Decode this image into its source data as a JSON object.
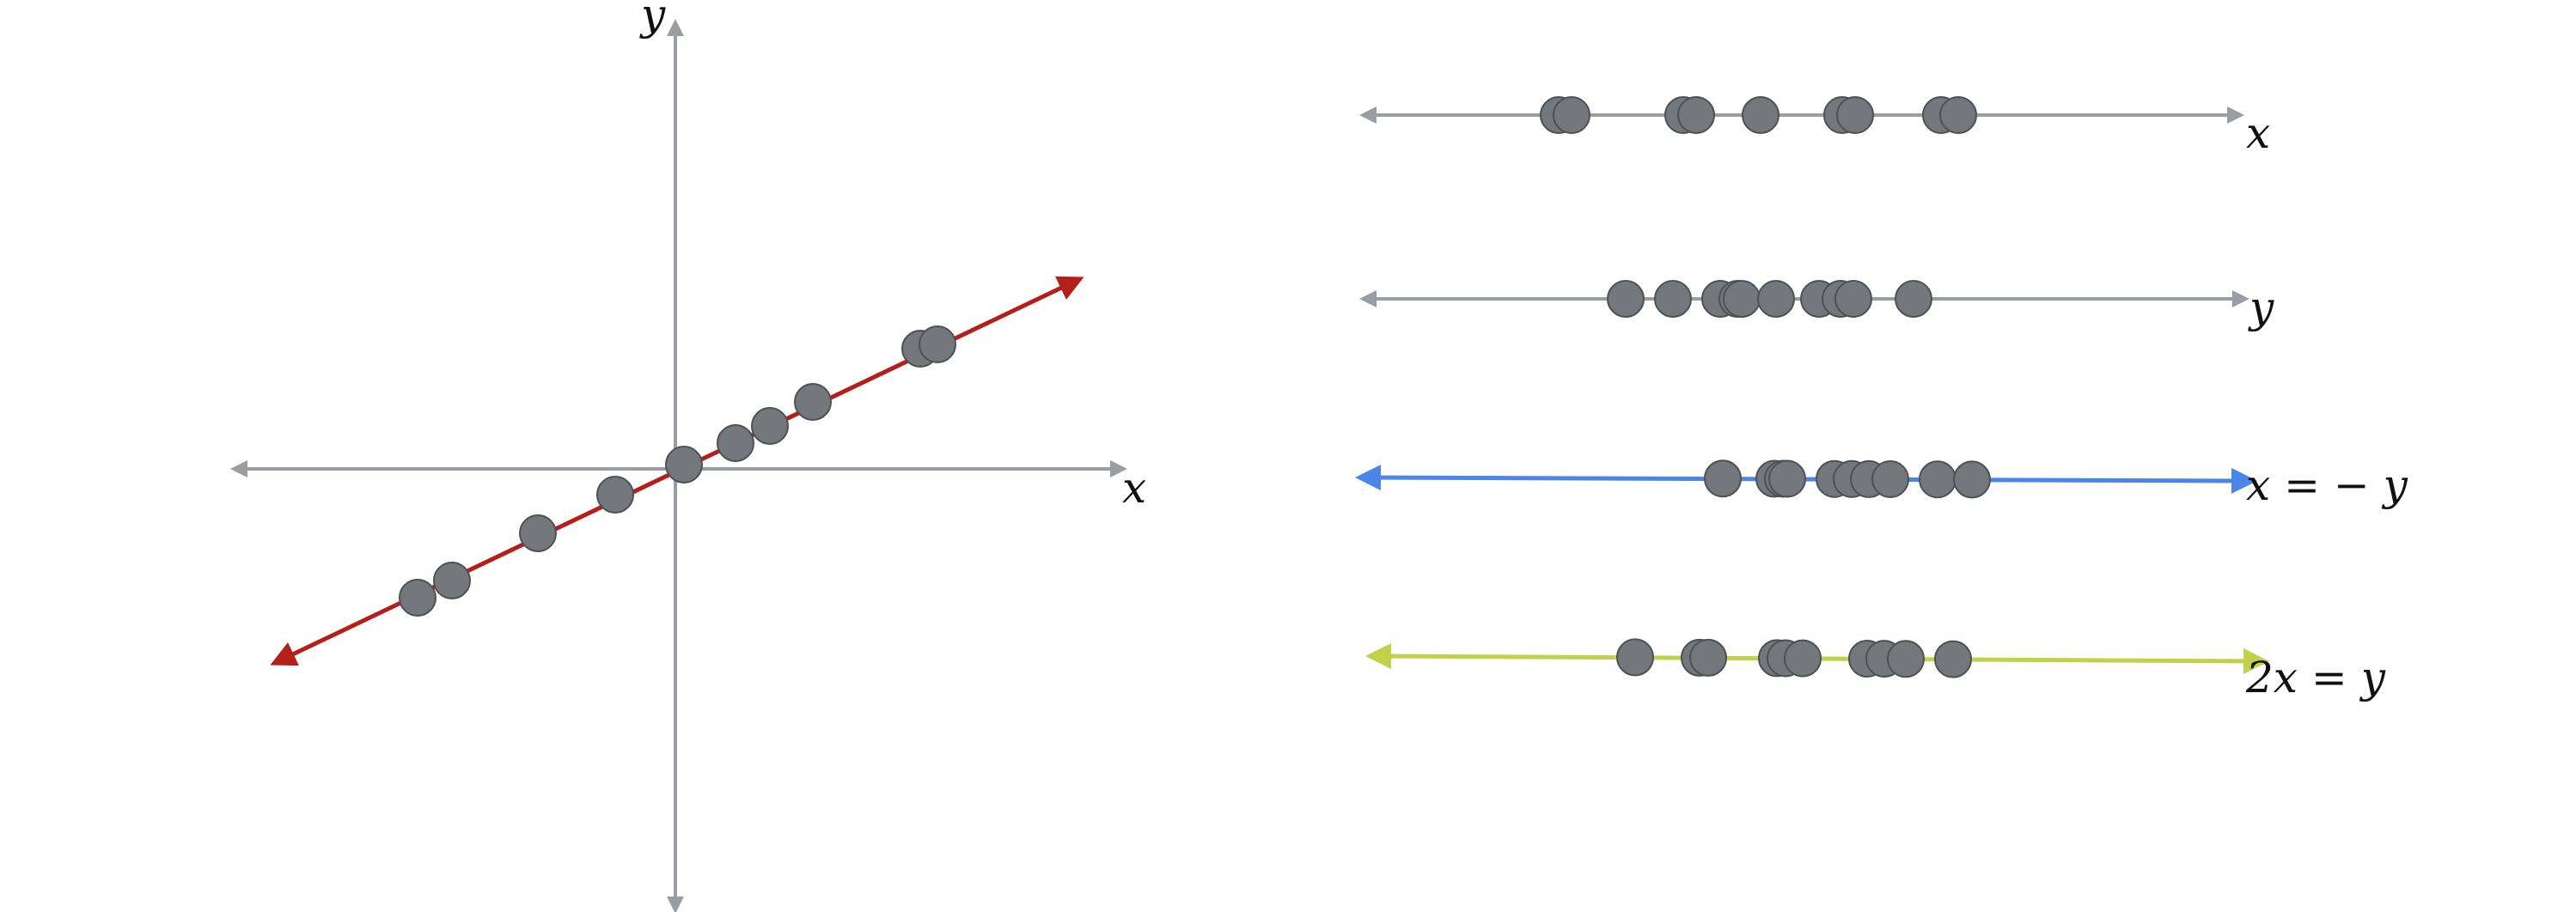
{
  "colors": {
    "axis": "#9a9ea3",
    "regression_line": "#b41f1a",
    "line_neg": "#4a86e8",
    "line_2x": "#c2d14a",
    "point_fill": "#74787c",
    "point_stroke": "#4d5155"
  },
  "scatter": {
    "x_label": "x",
    "y_label": "y",
    "points": [
      {
        "x": -3.0,
        "y": -1.5
      },
      {
        "x": -2.6,
        "y": -1.3
      },
      {
        "x": -1.6,
        "y": -0.75
      },
      {
        "x": -0.7,
        "y": -0.3
      },
      {
        "x": 0.1,
        "y": 0.05
      },
      {
        "x": 0.7,
        "y": 0.3
      },
      {
        "x": 1.1,
        "y": 0.5
      },
      {
        "x": 1.6,
        "y": 0.78
      },
      {
        "x": 2.85,
        "y": 1.4
      },
      {
        "x": 3.05,
        "y": 1.45
      }
    ]
  },
  "projections": [
    {
      "label": "x",
      "values": [
        -3.0,
        -2.85,
        -1.55,
        -1.4,
        -0.65,
        0.3,
        0.45,
        1.45,
        1.65
      ]
    },
    {
      "label": "y",
      "values": [
        -2.3,
        -1.75,
        -1.2,
        -1.0,
        -0.95,
        -0.55,
        -0.05,
        0.2,
        0.35,
        1.05
      ]
    },
    {
      "label": "x = − y",
      "values": [
        -2.0,
        -1.4,
        -1.3,
        -1.25,
        -0.7,
        -0.5,
        -0.3,
        -0.05,
        0.5,
        0.9
      ]
    },
    {
      "label": "2x = y",
      "values": [
        -2.65,
        -1.9,
        -1.8,
        -1.0,
        -0.9,
        -0.7,
        0.05,
        0.25,
        0.5,
        1.05
      ]
    }
  ]
}
